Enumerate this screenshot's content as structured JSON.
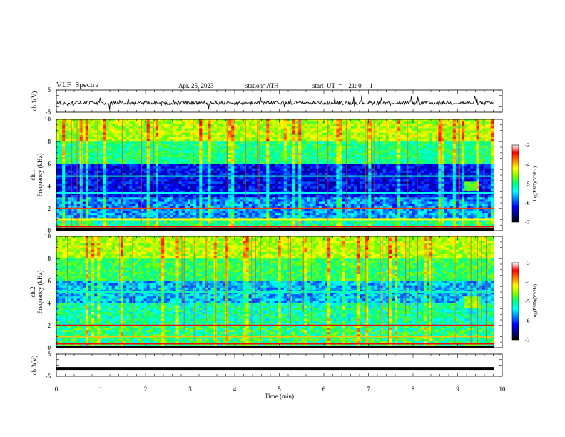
{
  "header": {
    "title": "VLF  Spectra",
    "date": "Apr. 25, 2023",
    "station": "station=ATH",
    "start": "start  UT  =    21: 0   : 1"
  },
  "chart_data": [
    {
      "type": "line",
      "panel": "ch1-waveform",
      "ylabel": "ch.1(V)",
      "ylim": [
        -5,
        5
      ],
      "yticks": [
        "5",
        "-5"
      ],
      "series": [
        {
          "values_desc": "noisy waveform centered near -1 V"
        }
      ],
      "x_range_min": [
        0,
        9.8
      ]
    },
    {
      "type": "heatmap",
      "panel": "ch1-spectrogram",
      "ylabel_channel": "ch.1",
      "ylabel": "Frequency  (kHz)",
      "ylim": [
        0,
        10
      ],
      "yticks": [
        "0",
        "2",
        "4",
        "6",
        "8",
        "10"
      ],
      "colorbar": {
        "label": "log(PSD)(V²/Hz)",
        "range": [
          -7,
          -3
        ],
        "ticks": [
          "-3",
          "-4",
          "-5",
          "-6",
          "-7"
        ]
      }
    },
    {
      "type": "heatmap",
      "panel": "ch2-spectrogram",
      "ylabel_channel": "ch.2",
      "ylabel": "Frequency  (kHz)",
      "ylim": [
        0,
        10
      ],
      "yticks": [
        "0",
        "2",
        "4",
        "6",
        "8",
        "10"
      ],
      "colorbar": {
        "label": "log(PSD)(V²/Hz)",
        "range": [
          -7,
          -3
        ],
        "ticks": [
          "-3",
          "-4",
          "-5",
          "-6",
          "-7"
        ]
      }
    },
    {
      "type": "line",
      "panel": "ch3-waveform",
      "ylabel": "ch.3(V)",
      "ylim": [
        -5,
        5
      ],
      "yticks": [
        "5",
        "-5"
      ],
      "series": [
        {
          "values_desc": "near-constant level at about -1.5 V"
        }
      ]
    }
  ],
  "xaxis": {
    "label": "Time  (min)",
    "range": [
      0,
      10
    ],
    "ticks": [
      "0",
      "1",
      "2",
      "3",
      "4",
      "5",
      "6",
      "7",
      "8",
      "9",
      "10"
    ]
  },
  "colors": {
    "background": "#ffffff",
    "axis": "#000000",
    "colormap": [
      "#000000",
      "#00008b",
      "#0000ff",
      "#0080ff",
      "#00ffff",
      "#00ff80",
      "#80ff00",
      "#ffff00",
      "#ff8000",
      "#ff0000",
      "#ffffff"
    ]
  }
}
